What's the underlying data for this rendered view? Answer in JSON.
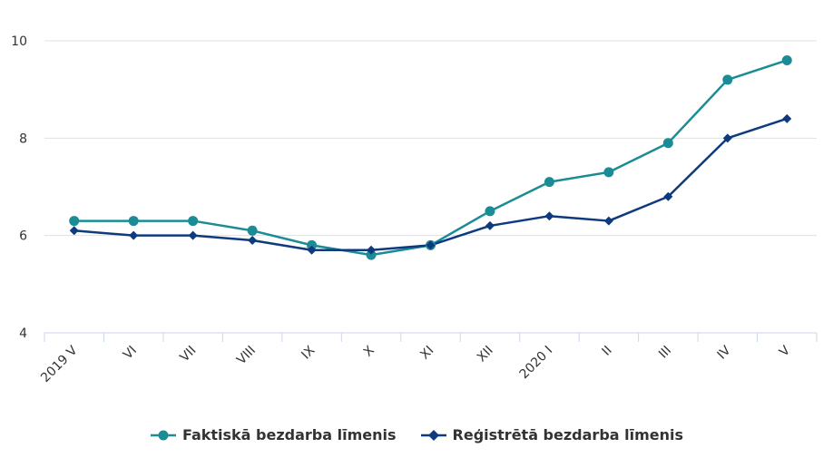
{
  "chart_data": {
    "type": "line",
    "categories": [
      "2019 V",
      "VI",
      "VII",
      "VIII",
      "IX",
      "X",
      "XI",
      "XII",
      "2020 I",
      "II",
      "III",
      "IV",
      "V"
    ],
    "series": [
      {
        "name": "Faktiskā bezdarba līmenis",
        "color": "#1b8c96",
        "marker": "circle",
        "values": [
          6.3,
          6.3,
          6.3,
          6.1,
          5.8,
          5.6,
          5.8,
          6.5,
          7.1,
          7.3,
          7.9,
          9.2,
          9.6
        ]
      },
      {
        "name": "Reģistrētā bezdarba līmenis",
        "color": "#0e3a7e",
        "marker": "diamond",
        "values": [
          6.1,
          6.0,
          6.0,
          5.9,
          5.7,
          5.7,
          5.8,
          6.2,
          6.4,
          6.3,
          6.8,
          8.0,
          8.4
        ]
      }
    ],
    "yticks": [
      4,
      6,
      8,
      10
    ],
    "ylim": [
      4,
      10
    ],
    "grid": true,
    "legend_position": "bottom-center",
    "title": "",
    "xlabel": "",
    "ylabel": ""
  }
}
